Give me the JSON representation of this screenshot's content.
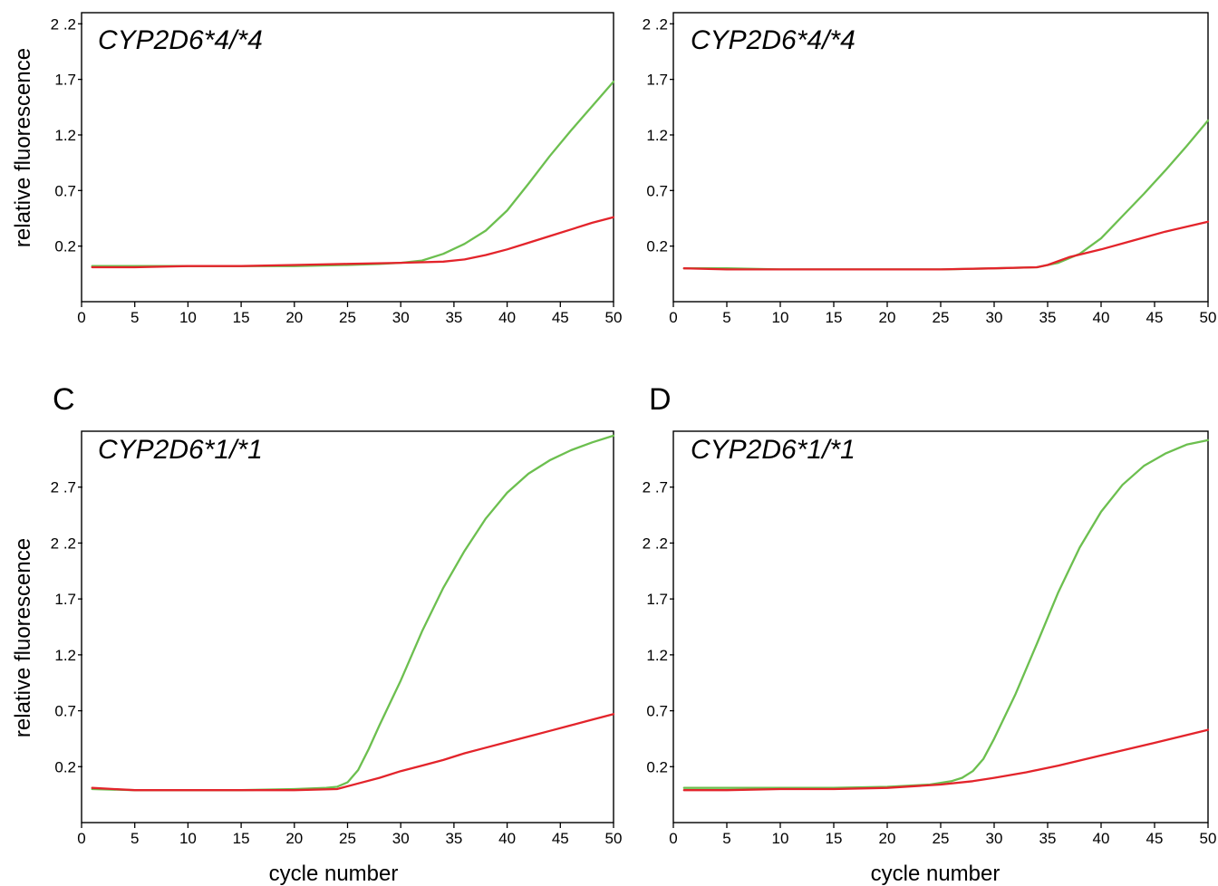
{
  "panel_labels": {
    "C": "C",
    "D": "D"
  },
  "axis_titles": {
    "y_top": "relative fluorescence",
    "y_bottom": "relative fluorescence",
    "x_left": "cycle number",
    "x_right": "cycle number"
  },
  "colors": {
    "series_green": "#6cbf4f",
    "series_red": "#e3242b"
  },
  "chart_data": [
    {
      "type": "line",
      "title": "CYP2D6*4/*4",
      "xlabel": "",
      "ylabel": "relative fluorescence",
      "xlim": [
        0,
        50
      ],
      "ylim": [
        -0.3,
        2.3
      ],
      "xticks": [
        0,
        5,
        10,
        15,
        20,
        25,
        30,
        35,
        40,
        45,
        50
      ],
      "yticks": [
        0.2,
        0.7,
        1.2,
        1.7,
        2.2
      ],
      "ytick_labels": [
        "0.2",
        "0.7",
        "1.2",
        "1.7",
        "2 .2"
      ],
      "series": [
        {
          "color": "#6cbf4f",
          "x": [
            1,
            5,
            10,
            15,
            20,
            25,
            28,
            30,
            32,
            34,
            36,
            38,
            40,
            42,
            44,
            46,
            48,
            50
          ],
          "y": [
            0.02,
            0.02,
            0.02,
            0.02,
            0.02,
            0.03,
            0.04,
            0.05,
            0.07,
            0.13,
            0.22,
            0.34,
            0.52,
            0.76,
            1.01,
            1.24,
            1.46,
            1.68
          ]
        },
        {
          "color": "#e3242b",
          "x": [
            1,
            5,
            10,
            15,
            20,
            25,
            30,
            34,
            36,
            38,
            40,
            42,
            44,
            46,
            48,
            50
          ],
          "y": [
            0.01,
            0.01,
            0.02,
            0.02,
            0.03,
            0.04,
            0.05,
            0.06,
            0.08,
            0.12,
            0.17,
            0.23,
            0.29,
            0.35,
            0.41,
            0.46
          ]
        }
      ]
    },
    {
      "type": "line",
      "title": "CYP2D6*4/*4",
      "xlabel": "",
      "ylabel": "",
      "xlim": [
        0,
        50
      ],
      "ylim": [
        -0.3,
        2.3
      ],
      "xticks": [
        0,
        5,
        10,
        15,
        20,
        25,
        30,
        35,
        40,
        45,
        50
      ],
      "yticks": [
        0.2,
        0.7,
        1.2,
        1.7,
        2.2
      ],
      "ytick_labels": [
        "0.2",
        "0.7",
        "1.2",
        "1.7",
        "2 .2"
      ],
      "series": [
        {
          "color": "#6cbf4f",
          "x": [
            1,
            5,
            10,
            15,
            20,
            25,
            30,
            34,
            36,
            38,
            40,
            42,
            44,
            46,
            48,
            50
          ],
          "y": [
            0.0,
            0.0,
            -0.01,
            -0.01,
            -0.01,
            -0.01,
            0.0,
            0.01,
            0.05,
            0.13,
            0.27,
            0.47,
            0.67,
            0.88,
            1.1,
            1.33
          ]
        },
        {
          "color": "#e3242b",
          "x": [
            1,
            5,
            10,
            15,
            20,
            25,
            30,
            34,
            35,
            37,
            40,
            43,
            46,
            50
          ],
          "y": [
            0.0,
            -0.01,
            -0.01,
            -0.01,
            -0.01,
            -0.01,
            0.0,
            0.01,
            0.03,
            0.1,
            0.17,
            0.25,
            0.33,
            0.42
          ]
        }
      ]
    },
    {
      "type": "line",
      "title": "CYP2D6*1/*1",
      "xlabel": "cycle number",
      "ylabel": "relative fluorescence",
      "xlim": [
        0,
        50
      ],
      "ylim": [
        -0.3,
        3.2
      ],
      "xticks": [
        0,
        5,
        10,
        15,
        20,
        25,
        30,
        35,
        40,
        45,
        50
      ],
      "yticks": [
        0.2,
        0.7,
        1.2,
        1.7,
        2.2,
        2.7
      ],
      "ytick_labels": [
        "0.2",
        "0.7",
        "1.2",
        "1.7",
        "2 .2",
        "2 .7"
      ],
      "series": [
        {
          "color": "#6cbf4f",
          "x": [
            1,
            5,
            10,
            15,
            20,
            23,
            24,
            25,
            26,
            27,
            28,
            30,
            32,
            34,
            36,
            38,
            40,
            42,
            44,
            46,
            48,
            50
          ],
          "y": [
            0.0,
            -0.01,
            -0.01,
            -0.01,
            0.0,
            0.01,
            0.02,
            0.06,
            0.17,
            0.36,
            0.57,
            0.97,
            1.41,
            1.8,
            2.13,
            2.42,
            2.65,
            2.82,
            2.94,
            3.03,
            3.1,
            3.16
          ]
        },
        {
          "color": "#e3242b",
          "x": [
            1,
            5,
            10,
            15,
            20,
            24,
            26,
            28,
            30,
            32,
            34,
            36,
            38,
            40,
            42,
            44,
            46,
            48,
            50
          ],
          "y": [
            0.01,
            -0.01,
            -0.01,
            -0.01,
            -0.01,
            0.0,
            0.05,
            0.1,
            0.16,
            0.21,
            0.26,
            0.32,
            0.37,
            0.42,
            0.47,
            0.52,
            0.57,
            0.62,
            0.67
          ]
        }
      ]
    },
    {
      "type": "line",
      "title": "CYP2D6*1/*1",
      "xlabel": "cycle number",
      "ylabel": "",
      "xlim": [
        0,
        50
      ],
      "ylim": [
        -0.3,
        3.2
      ],
      "xticks": [
        0,
        5,
        10,
        15,
        20,
        25,
        30,
        35,
        40,
        45,
        50
      ],
      "yticks": [
        0.2,
        0.7,
        1.2,
        1.7,
        2.2,
        2.7
      ],
      "ytick_labels": [
        "0.2",
        "0.7",
        "1.2",
        "1.7",
        "2 .2",
        "2 .7"
      ],
      "series": [
        {
          "color": "#6cbf4f",
          "x": [
            1,
            5,
            10,
            15,
            20,
            24,
            26,
            27,
            28,
            29,
            30,
            32,
            34,
            36,
            38,
            40,
            42,
            44,
            46,
            48,
            50
          ],
          "y": [
            0.01,
            0.01,
            0.01,
            0.01,
            0.02,
            0.04,
            0.07,
            0.1,
            0.16,
            0.27,
            0.45,
            0.85,
            1.3,
            1.76,
            2.16,
            2.48,
            2.72,
            2.89,
            3.0,
            3.08,
            3.12
          ]
        },
        {
          "color": "#e3242b",
          "x": [
            1,
            5,
            10,
            15,
            20,
            25,
            28,
            30,
            33,
            36,
            40,
            44,
            47,
            50
          ],
          "y": [
            -0.01,
            -0.01,
            0.0,
            0.0,
            0.01,
            0.04,
            0.07,
            0.1,
            0.15,
            0.21,
            0.3,
            0.39,
            0.46,
            0.53
          ]
        }
      ]
    }
  ]
}
